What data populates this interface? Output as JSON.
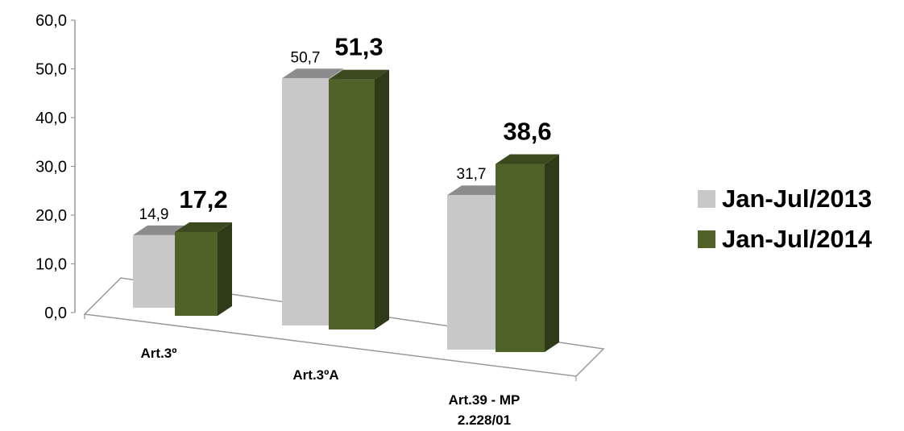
{
  "chart_data": {
    "type": "bar",
    "categories": [
      "Art.3º",
      "Art.3ºA",
      "Art.39 - MP 2.228/01"
    ],
    "series": [
      {
        "name": "Jan-Jul/2013",
        "values": [
          14.9,
          50.7,
          31.7
        ],
        "labels": [
          "14,9",
          "50,7",
          "31,7"
        ],
        "color": "#c8c8c8"
      },
      {
        "name": "Jan-Jul/2014",
        "values": [
          17.2,
          51.3,
          38.6
        ],
        "labels": [
          "17,2",
          "51,3",
          "38,6"
        ],
        "color": "#4f6228"
      }
    ],
    "ylim": [
      0,
      60
    ],
    "yticks": [
      "0,0",
      "10,0",
      "20,0",
      "30,0",
      "40,0",
      "50,0",
      "60,0"
    ],
    "legend_position": "right",
    "grid": false,
    "style": "3d"
  }
}
